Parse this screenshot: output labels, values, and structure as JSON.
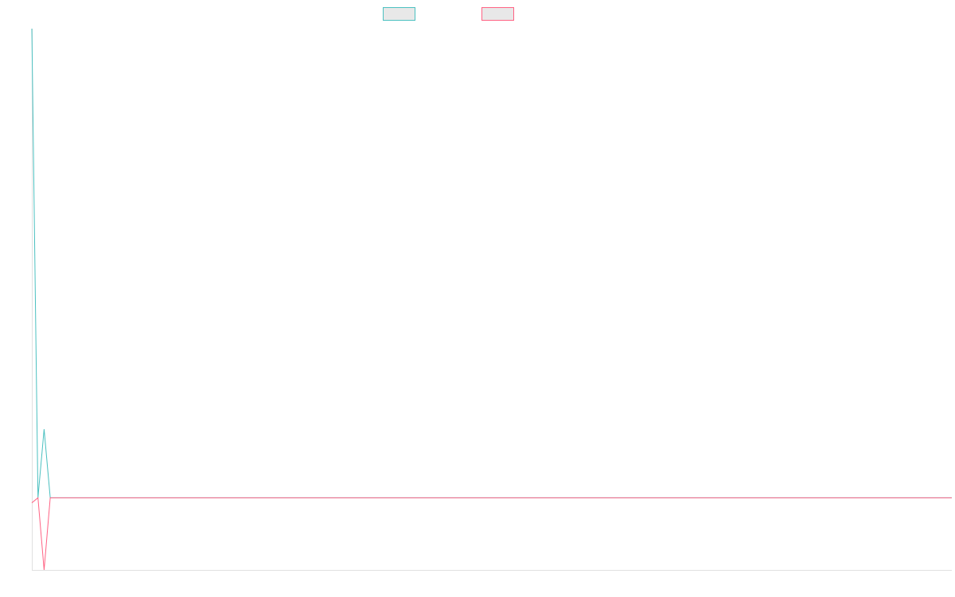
{
  "chart_data": {
    "type": "line",
    "title": "",
    "xlabel": "",
    "ylabel": "",
    "grid": false,
    "legend_position": "top-center",
    "x": [
      0,
      1,
      2,
      3,
      4,
      5,
      6,
      7,
      8,
      9,
      10,
      11,
      12,
      13,
      14,
      15,
      16,
      17,
      18,
      19,
      20,
      21,
      22,
      23,
      24,
      25,
      26,
      27,
      28,
      29,
      30,
      31,
      32,
      33,
      34,
      35,
      36,
      37,
      38,
      39,
      40,
      41,
      42,
      43,
      44,
      45,
      46,
      47,
      48,
      49,
      50,
      51,
      52,
      53,
      54,
      55,
      56,
      57,
      58,
      59,
      60,
      61,
      62,
      63,
      64,
      65,
      66,
      67,
      68,
      69,
      70,
      71,
      72,
      73,
      74,
      75,
      76,
      77,
      78,
      79,
      80,
      81,
      82,
      83,
      84,
      85,
      86,
      87,
      88,
      89,
      90,
      91,
      92,
      93,
      94,
      95,
      96,
      97,
      98,
      99,
      100,
      101,
      102,
      103,
      104,
      105,
      106,
      107,
      108,
      109,
      110,
      111,
      112,
      113,
      114,
      115,
      116,
      117,
      118,
      119,
      120,
      121,
      122,
      123,
      124,
      125,
      126,
      127,
      128,
      129,
      130,
      131,
      132,
      133,
      134,
      135,
      136,
      137,
      138,
      139,
      140,
      141,
      142,
      143,
      144,
      145,
      146,
      147,
      148,
      149,
      150
    ],
    "xlim": [
      0,
      150
    ],
    "ylim": [
      -10,
      65
    ],
    "series": [
      {
        "name": "",
        "color": "#4bc0c0",
        "values": [
          65,
          0,
          9.5,
          0,
          0,
          0,
          0,
          0,
          0,
          0,
          0,
          0,
          0,
          0,
          0,
          0,
          0,
          0,
          0,
          0,
          0,
          0,
          0,
          0,
          0,
          0,
          0,
          0,
          0,
          0,
          0,
          0,
          0,
          0,
          0,
          0,
          0,
          0,
          0,
          0,
          0,
          0,
          0,
          0,
          0,
          0,
          0,
          0,
          0,
          0,
          0,
          0,
          0,
          0,
          0,
          0,
          0,
          0,
          0,
          0,
          0,
          0,
          0,
          0,
          0,
          0,
          0,
          0,
          0,
          0,
          0,
          0,
          0,
          0,
          0,
          0,
          0,
          0,
          0,
          0,
          0,
          0,
          0,
          0,
          0,
          0,
          0,
          0,
          0,
          0,
          0,
          0,
          0,
          0,
          0,
          0,
          0,
          0,
          0,
          0,
          0,
          0,
          0,
          0,
          0,
          0,
          0,
          0,
          0,
          0,
          0,
          0,
          0,
          0,
          0,
          0,
          0,
          0,
          0,
          0,
          0,
          0,
          0,
          0,
          0,
          0,
          0,
          0,
          0,
          0,
          0,
          0,
          0,
          0,
          0,
          0,
          0,
          0,
          0,
          0,
          0,
          0,
          0,
          0,
          0,
          0,
          0,
          0,
          0,
          0,
          0
        ]
      },
      {
        "name": "",
        "color": "#ff6384",
        "values": [
          -0.7,
          0,
          -10,
          0,
          0,
          0,
          0,
          0,
          0,
          0,
          0,
          0,
          0,
          0,
          0,
          0,
          0,
          0,
          0,
          0,
          0,
          0,
          0,
          0,
          0,
          0,
          0,
          0,
          0,
          0,
          0,
          0,
          0,
          0,
          0,
          0,
          0,
          0,
          0,
          0,
          0,
          0,
          0,
          0,
          0,
          0,
          0,
          0,
          0,
          0,
          0,
          0,
          0,
          0,
          0,
          0,
          0,
          0,
          0,
          0,
          0,
          0,
          0,
          0,
          0,
          0,
          0,
          0,
          0,
          0,
          0,
          0,
          0,
          0,
          0,
          0,
          0,
          0,
          0,
          0,
          0,
          0,
          0,
          0,
          0,
          0,
          0,
          0,
          0,
          0,
          0,
          0,
          0,
          0,
          0,
          0,
          0,
          0,
          0,
          0,
          0,
          0,
          0,
          0,
          0,
          0,
          0,
          0,
          0,
          0,
          0,
          0,
          0,
          0,
          0,
          0,
          0,
          0,
          0,
          0,
          0,
          0,
          0,
          0,
          0,
          0,
          0,
          0,
          0,
          0,
          0,
          0,
          0,
          0,
          0,
          0,
          0,
          0,
          0,
          0,
          0,
          0,
          0,
          0,
          0,
          0,
          0,
          0,
          0,
          0,
          0
        ]
      }
    ]
  }
}
